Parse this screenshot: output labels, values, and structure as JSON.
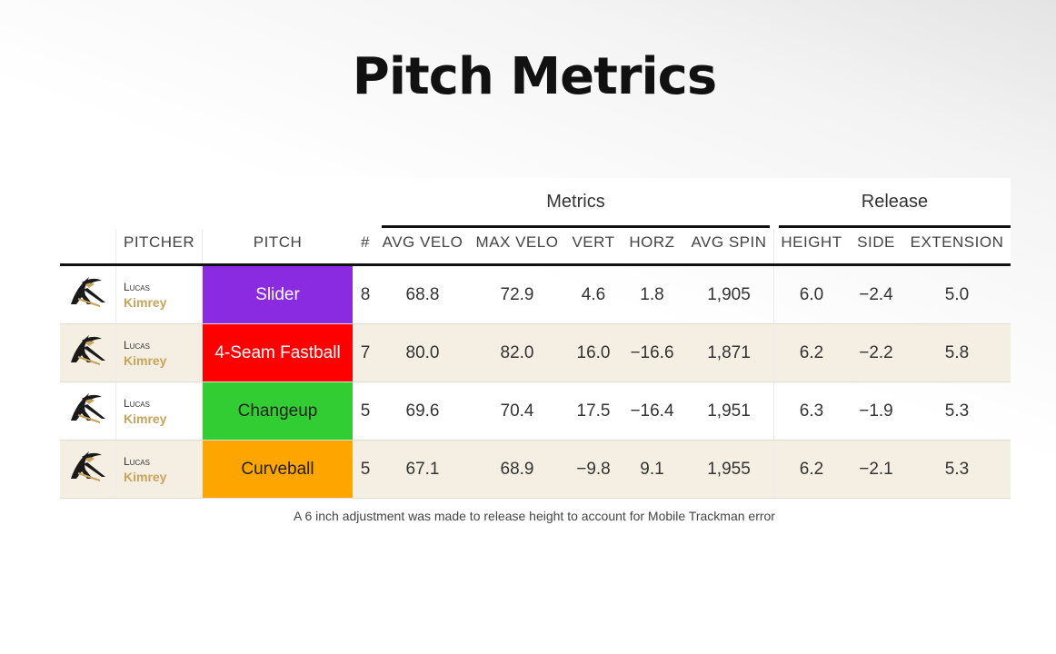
{
  "title": "Pitch Metrics",
  "spanners": {
    "metrics": "Metrics",
    "release": "Release"
  },
  "columns": {
    "pitcher": "PITCHER",
    "pitch": "PITCH",
    "count": "#",
    "avg_velo": "AVG VELO",
    "max_velo": "MAX VELO",
    "vert": "VERT",
    "horz": "HORZ",
    "avg_spin": "AVG SPIN",
    "height": "HEIGHT",
    "side": "SIDE",
    "extension": "EXTENSION"
  },
  "rows": [
    {
      "first": "Lucas",
      "last": "Kimrey",
      "pitch": "Slider",
      "pitch_color": "#8a2be2",
      "pitch_text_color": "#ffffff",
      "count": "8",
      "avg_velo": "68.8",
      "max_velo": "72.9",
      "vert": "4.6",
      "horz": "1.8",
      "avg_spin": "1,905",
      "height": "6.0",
      "side": "−2.4",
      "extension": "5.0"
    },
    {
      "first": "Lucas",
      "last": "Kimrey",
      "pitch": "4-Seam Fastball",
      "pitch_color": "#ff0000",
      "pitch_text_color": "#ffffff",
      "count": "7",
      "avg_velo": "80.0",
      "max_velo": "82.0",
      "vert": "16.0",
      "horz": "−16.6",
      "avg_spin": "1,871",
      "height": "6.2",
      "side": "−2.2",
      "extension": "5.8"
    },
    {
      "first": "Lucas",
      "last": "Kimrey",
      "pitch": "Changeup",
      "pitch_color": "#32cd32",
      "pitch_text_color": "#222222",
      "count": "5",
      "avg_velo": "69.6",
      "max_velo": "70.4",
      "vert": "17.5",
      "horz": "−16.4",
      "avg_spin": "1,951",
      "height": "6.3",
      "side": "−1.9",
      "extension": "5.3"
    },
    {
      "first": "Lucas",
      "last": "Kimrey",
      "pitch": "Curveball",
      "pitch_color": "#ffa500",
      "pitch_text_color": "#222222",
      "count": "5",
      "avg_velo": "67.1",
      "max_velo": "68.9",
      "vert": "−9.8",
      "horz": "9.1",
      "avg_spin": "1,955",
      "height": "6.2",
      "side": "−2.1",
      "extension": "5.3"
    }
  ],
  "footnote": "A 6 inch adjustment was made to release height to account for Mobile Trackman error",
  "colors": {
    "alt_row": "#f5efe3",
    "last_name": "#c9a35a",
    "rule": "#111111"
  },
  "icons": {
    "team_logo": "team-logo-icon"
  }
}
